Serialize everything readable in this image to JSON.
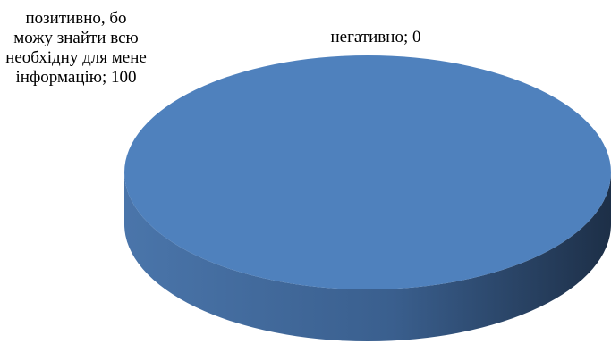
{
  "chart_data": {
    "type": "pie",
    "title": "",
    "slices": [
      {
        "label": "позитивно, бо можу знайти всю необхідну для мене інформацію",
        "value": 100
      },
      {
        "label": "негативно",
        "value": 0
      }
    ],
    "data_labels": [
      "позитивно, бо можу знайти всю необхідну для мене інформацію; 100",
      "негативно; 0"
    ],
    "colors": {
      "slice_top": "#4f81bd",
      "side_light": "#4a75aa",
      "side_dark": "#1d2f47"
    },
    "legend": "none",
    "style": "3d"
  }
}
